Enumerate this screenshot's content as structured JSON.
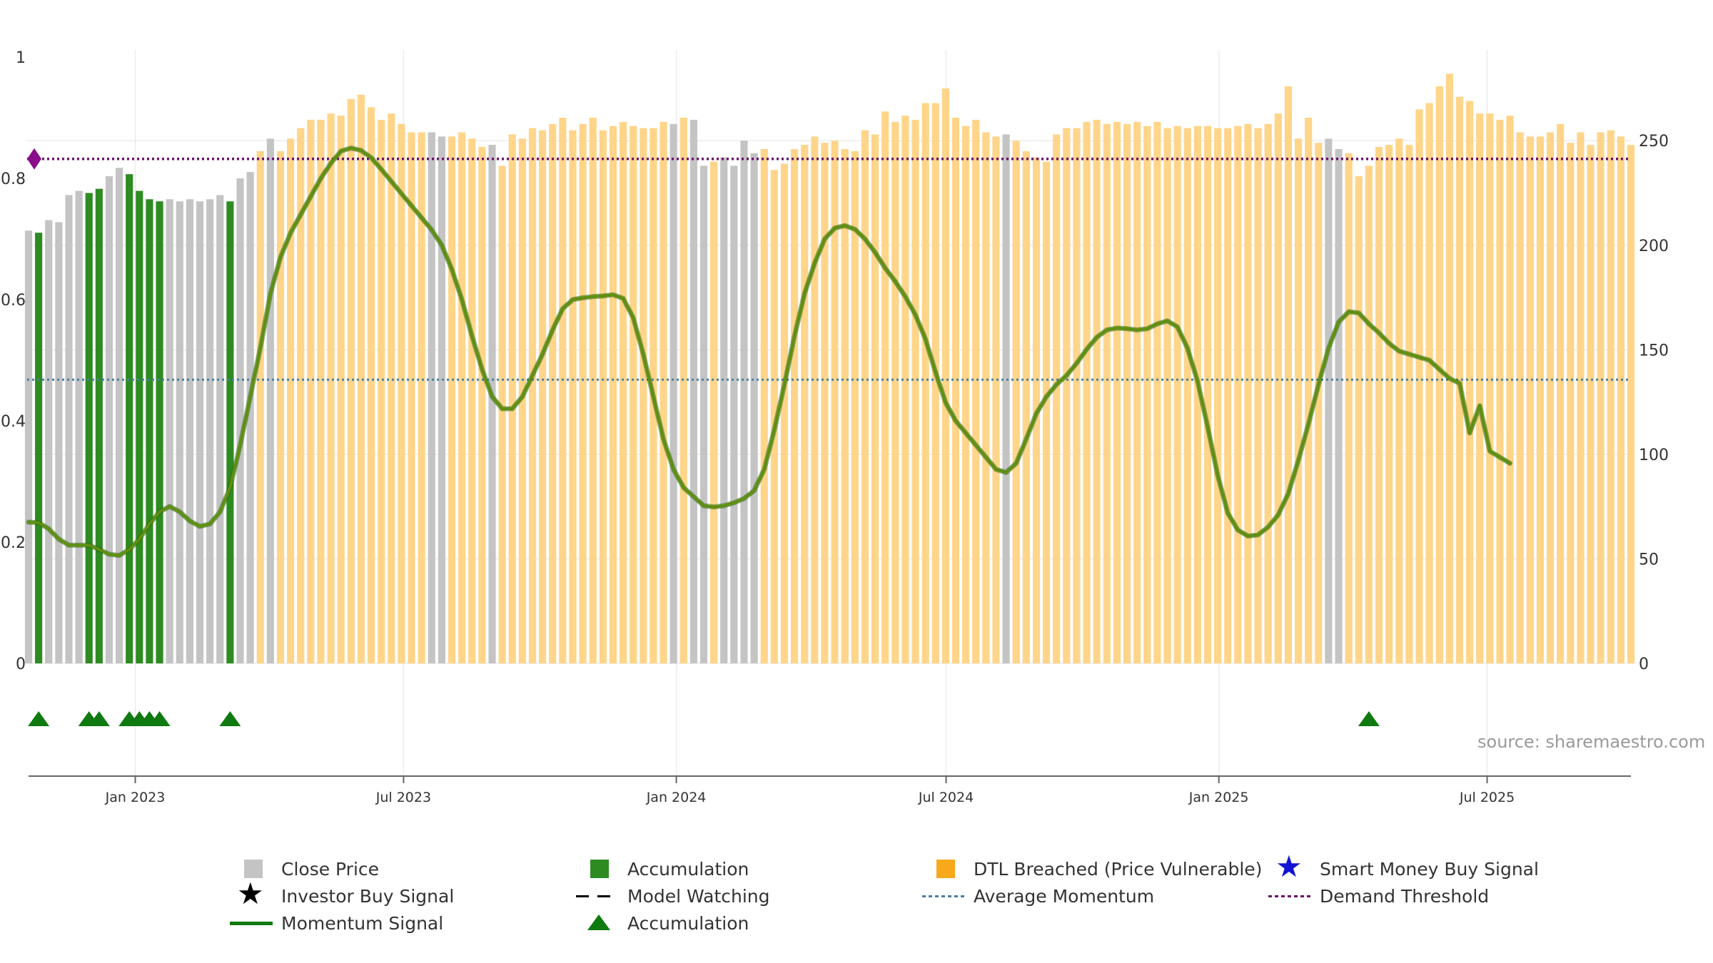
{
  "chart_data": {
    "type": "bar",
    "source_text": "source: sharemaestro.com",
    "y_left": {
      "ylim": [
        0,
        1
      ],
      "ticks": [
        "0",
        "0.2",
        "0.4",
        "0.6",
        "0.8",
        "1"
      ],
      "tick_values": [
        0,
        0.2,
        0.4,
        0.6,
        0.8,
        1.0
      ]
    },
    "y_right": {
      "ylim": [
        0,
        290
      ],
      "ticks": [
        "0",
        "50",
        "100",
        "150",
        "200",
        "250"
      ],
      "tick_values": [
        0,
        50,
        100,
        150,
        200,
        250
      ]
    },
    "x_axis": {
      "start": "2022-10-21",
      "end": "2025-10-06",
      "tick_labels": [
        "Jan 2023",
        "Jul 2023",
        "Jan 2024",
        "Jul 2024",
        "Jan 2025",
        "Jul 2025"
      ],
      "tick_dates": [
        "2023-01-01",
        "2023-07-01",
        "2024-01-01",
        "2024-07-01",
        "2025-01-01",
        "2025-07-01"
      ]
    },
    "series": [
      {
        "name": "Close Price",
        "kind": "bar",
        "axis": "right",
        "color": "#b3b3b3",
        "note": "weekly close price; bar colour encodes state",
        "values": [
          207,
          206,
          212,
          211,
          224,
          226,
          225,
          227,
          233,
          237,
          234,
          226,
          222,
          221,
          222,
          221,
          222,
          221,
          222,
          224,
          221,
          232,
          235,
          245,
          251,
          245,
          251,
          256,
          260,
          260,
          263,
          262,
          270,
          272,
          266,
          260,
          263,
          258,
          254,
          254,
          254,
          252,
          252,
          254,
          251,
          247,
          248,
          238,
          253,
          251,
          256,
          255,
          258,
          261,
          255,
          258,
          261,
          255,
          257,
          259,
          257,
          256,
          256,
          259,
          258,
          261,
          260,
          238,
          240,
          242,
          238,
          250,
          244,
          246,
          236,
          239,
          246,
          248,
          252,
          249,
          250,
          246,
          245,
          255,
          253,
          264,
          259,
          262,
          260,
          268,
          268,
          275,
          261,
          257,
          260,
          254,
          252,
          253,
          250,
          245,
          242,
          240,
          253,
          256,
          256,
          259,
          260,
          258,
          259,
          258,
          259,
          257,
          259,
          256,
          257,
          256,
          257,
          257,
          256,
          256,
          257,
          258,
          256,
          258,
          263,
          276,
          251,
          261,
          249,
          251,
          246,
          244,
          233,
          238,
          247,
          248,
          251,
          248,
          265,
          268,
          276,
          282,
          271,
          269,
          263,
          263,
          260,
          262,
          254,
          252,
          252,
          254,
          258,
          249,
          254,
          248,
          254,
          255,
          252,
          248
        ]
      },
      {
        "name": "Momentum Signal",
        "kind": "line",
        "axis": "left",
        "color": "#5f8f10",
        "values": [
          0.233,
          0.232,
          0.222,
          0.205,
          0.195,
          0.195,
          0.195,
          0.188,
          0.18,
          0.178,
          0.188,
          0.205,
          0.23,
          0.25,
          0.259,
          0.25,
          0.235,
          0.226,
          0.23,
          0.25,
          0.29,
          0.36,
          0.44,
          0.52,
          0.61,
          0.67,
          0.71,
          0.74,
          0.77,
          0.8,
          0.825,
          0.845,
          0.85,
          0.846,
          0.834,
          0.815,
          0.795,
          0.775,
          0.755,
          0.735,
          0.715,
          0.69,
          0.65,
          0.6,
          0.54,
          0.485,
          0.44,
          0.42,
          0.42,
          0.44,
          0.475,
          0.51,
          0.55,
          0.585,
          0.6,
          0.603,
          0.605,
          0.606,
          0.608,
          0.602,
          0.57,
          0.51,
          0.44,
          0.37,
          0.32,
          0.29,
          0.275,
          0.26,
          0.258,
          0.26,
          0.265,
          0.272,
          0.285,
          0.32,
          0.385,
          0.46,
          0.54,
          0.61,
          0.66,
          0.7,
          0.718,
          0.722,
          0.716,
          0.7,
          0.678,
          0.652,
          0.63,
          0.605,
          0.575,
          0.535,
          0.48,
          0.43,
          0.4,
          0.38,
          0.36,
          0.34,
          0.32,
          0.315,
          0.33,
          0.37,
          0.412,
          0.44,
          0.46,
          0.475,
          0.495,
          0.518,
          0.538,
          0.55,
          0.553,
          0.552,
          0.55,
          0.552,
          0.56,
          0.565,
          0.555,
          0.52,
          0.465,
          0.39,
          0.31,
          0.248,
          0.22,
          0.21,
          0.212,
          0.225,
          0.245,
          0.28,
          0.335,
          0.395,
          0.46,
          0.52,
          0.563,
          0.58,
          0.578,
          0.56,
          0.545,
          0.528,
          0.515,
          0.51,
          0.505,
          0.5,
          0.485,
          0.47,
          0.462,
          0.38,
          0.425,
          0.35,
          0.34,
          0.33
        ]
      },
      {
        "name": "Accumulation",
        "kind": "bar-highlight",
        "color": "#2e8b22",
        "indices": [
          1,
          6,
          7,
          10,
          11,
          12,
          13,
          20
        ]
      },
      {
        "name": "DTL Breached (Price Vulnerable)",
        "kind": "bar-highlight",
        "color": "#ffd58a",
        "gray_indices": [
          0,
          2,
          3,
          4,
          5,
          8,
          9,
          14,
          15,
          16,
          17,
          18,
          19,
          21,
          22,
          24,
          40,
          41,
          46,
          64,
          66,
          67,
          69,
          70,
          71,
          72,
          97,
          129,
          130
        ]
      },
      {
        "name": "Accumulation",
        "kind": "markers",
        "marker": "triangle",
        "color": "#0f7a0f",
        "indices": [
          1,
          6,
          7,
          10,
          11,
          12,
          13,
          20,
          133
        ]
      },
      {
        "name": "Average Momentum",
        "kind": "hline",
        "axis": "left",
        "value": 0.468,
        "color": "#4a7fa0",
        "style": "dotted"
      },
      {
        "name": "Demand Threshold",
        "kind": "hline",
        "axis": "left",
        "value": 0.832,
        "color": "#6a0a6a",
        "style": "dotted"
      }
    ],
    "legend": {
      "placement": "bottom",
      "entries": [
        {
          "label": "Close Price",
          "symbol": "gray-square"
        },
        {
          "label": "Accumulation",
          "symbol": "green-square"
        },
        {
          "label": "DTL Breached (Price Vulnerable)",
          "symbol": "orange-square"
        },
        {
          "label": "Smart Money Buy Signal",
          "symbol": "blue-star"
        },
        {
          "label": "Investor Buy Signal",
          "symbol": "black-star"
        },
        {
          "label": "Model Watching",
          "symbol": "black-dash"
        },
        {
          "label": "Average Momentum",
          "symbol": "blue-dotted"
        },
        {
          "label": "Demand Threshold",
          "symbol": "purple-dotted"
        },
        {
          "label": "Momentum Signal",
          "symbol": "green-line"
        },
        {
          "label": "Accumulation",
          "symbol": "green-triangle"
        }
      ]
    },
    "colors": {
      "gray": "#c4c4c4",
      "green": "#2e8b22",
      "orange": "#ffd58a",
      "orange_legend": "#f7a81b",
      "momentum": "#5f8f10",
      "avg": "#4a7fa0",
      "threshold": "#6a0a6a",
      "triangle": "#0f7a0f",
      "blue_star": "#1414d4",
      "black": "#000000"
    }
  }
}
